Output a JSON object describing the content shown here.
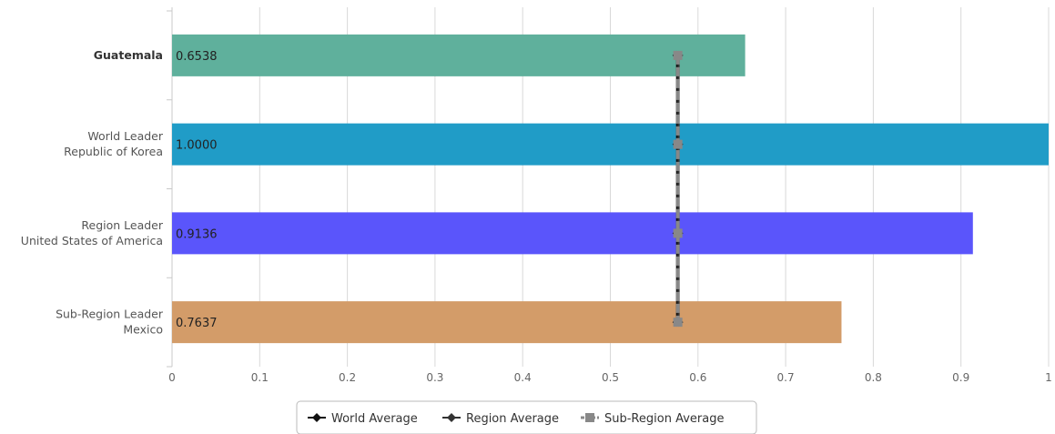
{
  "chart_data": {
    "type": "bar",
    "orientation": "horizontal",
    "categories": [
      {
        "lines": [
          "Guatemala"
        ],
        "bold": true
      },
      {
        "lines": [
          "World Leader",
          "Republic of Korea"
        ],
        "bold": false
      },
      {
        "lines": [
          "Region Leader",
          "United States of America"
        ],
        "bold": false
      },
      {
        "lines": [
          "Sub-Region Leader",
          "Mexico"
        ],
        "bold": false
      }
    ],
    "values": [
      0.6538,
      1.0,
      0.9136,
      0.7637
    ],
    "value_labels": [
      "0.6538",
      "1.0000",
      "0.9136",
      "0.7637"
    ],
    "bar_colors": [
      "#5fb09c",
      "#209cc7",
      "#5a55fb",
      "#d39c69"
    ],
    "xlim": [
      0,
      1
    ],
    "xticks": [
      0,
      0.1,
      0.2,
      0.3,
      0.4,
      0.5,
      0.6,
      0.7,
      0.8,
      0.9,
      1
    ],
    "xtick_labels": [
      "0",
      "0.1",
      "0.2",
      "0.3",
      "0.4",
      "0.5",
      "0.6",
      "0.7",
      "0.8",
      "0.9",
      "1"
    ],
    "grid": true,
    "series": [
      {
        "name": "World Average",
        "values": [
          0.576,
          0.576,
          0.576,
          0.576
        ],
        "color": "#111111",
        "marker": "diamond"
      },
      {
        "name": "Region Average",
        "values": [
          0.578,
          0.578,
          0.578,
          0.578
        ],
        "color": "#333333",
        "marker": "diamond"
      },
      {
        "name": "Sub-Region Average",
        "values": [
          0.577,
          0.577,
          0.577,
          0.577
        ],
        "color": "#888888",
        "marker": "square",
        "dashed": true
      }
    ],
    "legend_position": "bottom-center"
  }
}
